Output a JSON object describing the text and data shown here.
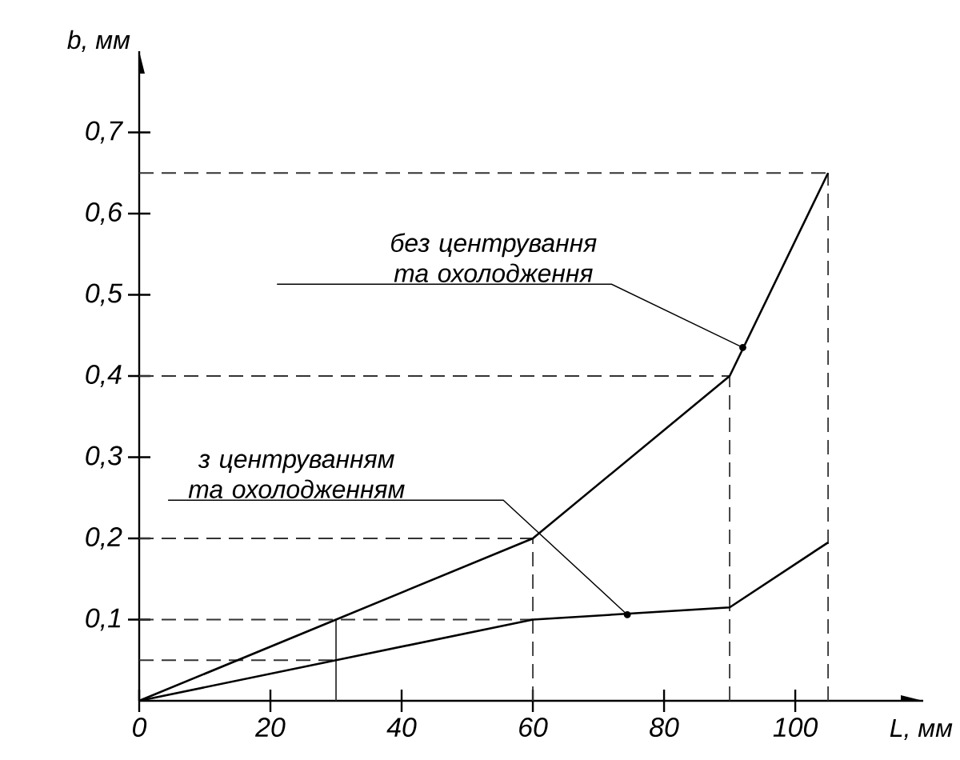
{
  "chart_data": {
    "type": "line",
    "xlabel": "L, мм",
    "ylabel": "b, мм",
    "xlim": [
      0,
      119.5
    ],
    "ylim": [
      0,
      0.8
    ],
    "xticks": [
      0,
      20,
      40,
      60,
      80,
      100
    ],
    "yticks": [
      {
        "value": 0.1,
        "label": "0,1"
      },
      {
        "value": 0.2,
        "label": "0,2"
      },
      {
        "value": 0.3,
        "label": "0,3"
      },
      {
        "value": 0.4,
        "label": "0,4"
      },
      {
        "value": 0.5,
        "label": "0,5"
      },
      {
        "value": 0.6,
        "label": "0,6"
      },
      {
        "value": 0.7,
        "label": "0,7"
      }
    ],
    "x": [
      0,
      30,
      60,
      90,
      105
    ],
    "series": [
      {
        "color": "#000000",
        "values": [
          0,
          0.1,
          0.2,
          0.4,
          0.65
        ]
      },
      {
        "color": "#000000",
        "values": [
          0,
          0.05,
          0.1,
          0.115,
          0.195
        ]
      }
    ],
    "ref_lines": [
      {
        "axis": "y",
        "value": 0.65,
        "line_style": "dashed",
        "color": "#333333"
      },
      {
        "axis": "y",
        "value": 0.4,
        "line_style": "dashed",
        "color": "#333333"
      },
      {
        "axis": "y",
        "value": 0.2,
        "line_style": "dashed",
        "color": "#333333"
      },
      {
        "axis": "y",
        "value": 0.1,
        "line_style": "dashed",
        "color": "#333333"
      },
      {
        "axis": "y",
        "value": 0.05,
        "line_style": "dashed",
        "color": "#333333"
      },
      {
        "axis": "x",
        "value": 30,
        "line_style": "solid",
        "color": "#333333"
      },
      {
        "axis": "x",
        "value": 60,
        "line_style": "dashed",
        "color": "#333333"
      },
      {
        "axis": "x",
        "value": 90,
        "line_style": "dashed",
        "color": "#333333"
      },
      {
        "axis": "x",
        "value": 105,
        "line_style": "dashed",
        "color": "#333333"
      }
    ],
    "annotations": [
      {
        "text": "без центрування та охолодження",
        "x": 92,
        "y": 0.435
      },
      {
        "text": "з центруванням та охолодженням",
        "x": 74.4,
        "y": 0.106
      }
    ],
    "grid": false,
    "marker": "none",
    "line_style": "solid"
  }
}
